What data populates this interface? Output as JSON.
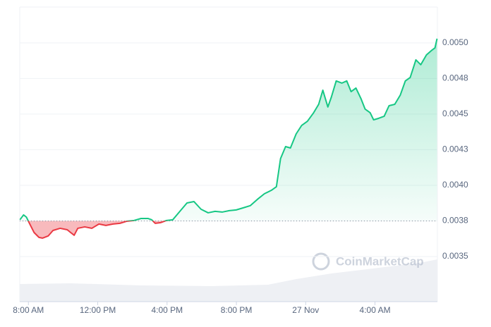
{
  "chart_data": {
    "type": "line",
    "watermark": "CoinMarketCap",
    "x": [
      7.51,
      7.72,
      7.88,
      8.08,
      8.33,
      8.61,
      8.81,
      9.14,
      9.42,
      9.83,
      10.24,
      10.44,
      10.64,
      10.85,
      11.25,
      11.66,
      12.07,
      12.47,
      12.88,
      13.28,
      13.69,
      14.1,
      14.5,
      14.91,
      15.11,
      15.32,
      15.64,
      15.97,
      16.33,
      16.74,
      17.15,
      17.55,
      17.96,
      18.37,
      18.77,
      19.18,
      19.59,
      19.99,
      20.4,
      20.8,
      21.21,
      21.62,
      22.02,
      22.31,
      22.55,
      22.84,
      23.12,
      23.45,
      23.77,
      24.1,
      24.46,
      24.75,
      24.99,
      25.28,
      25.48,
      25.76,
      26.09,
      26.37,
      26.62,
      26.9,
      27.19,
      27.43,
      27.72,
      27.92,
      28.2,
      28.53,
      28.81,
      29.14,
      29.46,
      29.75,
      30.03,
      30.36,
      30.64,
      30.97,
      31.25,
      31.46,
      31.58
    ],
    "values": [
      0.003758,
      0.003792,
      0.003777,
      0.003728,
      0.003668,
      0.003634,
      0.003629,
      0.003644,
      0.003683,
      0.003698,
      0.003688,
      0.003668,
      0.003649,
      0.003698,
      0.003708,
      0.003698,
      0.003728,
      0.003718,
      0.003728,
      0.003733,
      0.003748,
      0.003753,
      0.003767,
      0.003767,
      0.003758,
      0.003733,
      0.003738,
      0.003753,
      0.003758,
      0.003817,
      0.003876,
      0.003886,
      0.003832,
      0.003807,
      0.003817,
      0.003812,
      0.003822,
      0.003827,
      0.003842,
      0.003857,
      0.003901,
      0.003941,
      0.003965,
      0.00399,
      0.004188,
      0.004272,
      0.004262,
      0.004361,
      0.004421,
      0.00445,
      0.00451,
      0.004569,
      0.004668,
      0.00455,
      0.004619,
      0.004733,
      0.004718,
      0.004733,
      0.004658,
      0.004683,
      0.004609,
      0.004535,
      0.00451,
      0.00446,
      0.00447,
      0.004485,
      0.004559,
      0.004569,
      0.004634,
      0.004733,
      0.004757,
      0.004881,
      0.004847,
      0.004916,
      0.004946,
      0.004965,
      0.00503
    ],
    "baseline": 0.00375,
    "color_up": "#16c784",
    "color_down": "#ea3943",
    "xlim": [
      7.5,
      31.6
    ],
    "xticks": [
      {
        "value": 8,
        "label": "8:00 AM"
      },
      {
        "value": 12,
        "label": "12:00 PM"
      },
      {
        "value": 16,
        "label": "4:00 PM"
      },
      {
        "value": 20,
        "label": "8:00 PM"
      },
      {
        "value": 24,
        "label": "27 Nov"
      },
      {
        "value": 28,
        "label": "4:00 AM"
      }
    ],
    "ylim": [
      0.003183,
      0.005252
    ],
    "yticks": [
      {
        "value": 0.005,
        "label": "0.0050"
      },
      {
        "value": 0.00475,
        "label": "0.0048"
      },
      {
        "value": 0.0045,
        "label": "0.0045"
      },
      {
        "value": 0.00425,
        "label": "0.0043"
      },
      {
        "value": 0.004,
        "label": "0.0040"
      },
      {
        "value": 0.00375,
        "label": "0.0038"
      },
      0.0035
    ],
    "grid": true
  }
}
